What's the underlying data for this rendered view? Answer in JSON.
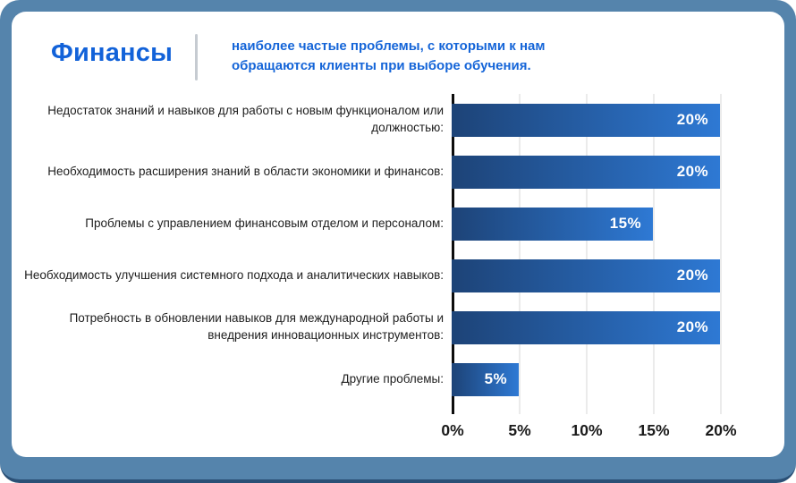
{
  "header": {
    "title": "Финансы",
    "subtitle": "наиболее частые проблемы, с которыми к нам обращаются клиенты при выборе обучения."
  },
  "chart_data": {
    "type": "bar",
    "orientation": "horizontal",
    "title": "Финансы",
    "xlabel": "",
    "ylabel": "",
    "categories": [
      "Недостаток знаний и навыков для работы с новым функционалом или должностью:",
      "Необходимость расширения знаний в области экономики и финансов:",
      "Проблемы с управлением финансовым отделом и персоналом:",
      "Необходимость улучшения системного подхода и аналитических навыков:",
      "Потребность в обновлении навыков для международной работы и внедрения инновационных инструментов:",
      "Другие проблемы:"
    ],
    "values": [
      20,
      20,
      15,
      20,
      20,
      5
    ],
    "value_labels": [
      "20%",
      "20%",
      "15%",
      "20%",
      "20%",
      "5%"
    ],
    "x_ticks": [
      "0%",
      "5%",
      "10%",
      "15%",
      "20%"
    ],
    "x_tick_values": [
      0,
      5,
      10,
      15,
      20
    ],
    "xlim": [
      0,
      20
    ],
    "grid": true,
    "legend": false,
    "colors": {
      "frame_background": "#5584ac",
      "frame_bottom_edge": "#2b5076",
      "card_background": "#ffffff",
      "title_blue": "#1262d9",
      "subtitle_blue": "#1565d8",
      "bar_gradient_start": "#1d4377",
      "bar_gradient_end": "#2e79d4",
      "bar_value_text": "#ffffff",
      "label_text": "#1d1d1d",
      "gridline": "#ebebeb",
      "axis_line": "#0d0d0d"
    }
  }
}
